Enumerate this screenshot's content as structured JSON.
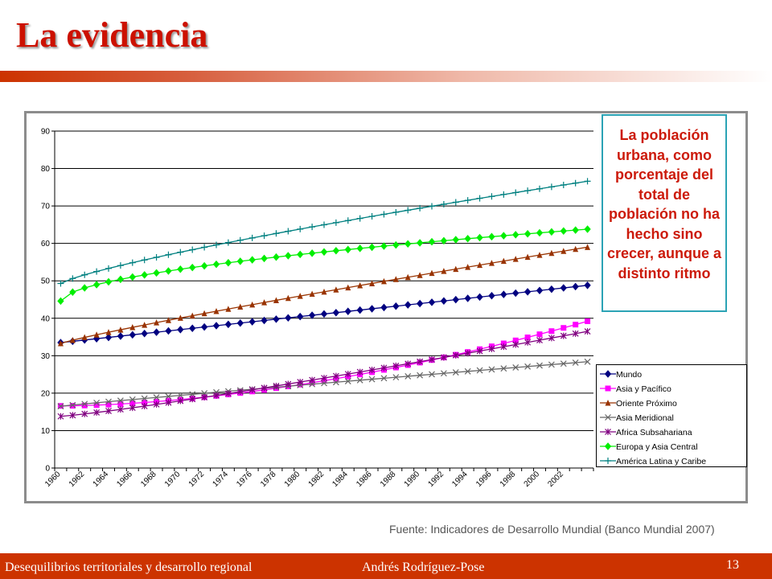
{
  "slide": {
    "title": "La evidencia",
    "callout": "La población urbana, como porcentaje del total de población no ha hecho sino crecer, aunque a distinto ritmo",
    "source": "Fuente:  Indicadores de Desarrollo Mundial (Banco Mundial 2007)",
    "footer_left": "Desequilibrios territoriales y desarrollo regional",
    "footer_mid": "Andrés  Rodríguez-Pose",
    "page_number": "13"
  },
  "chart_data": {
    "type": "line",
    "x_start": 1960,
    "x_end": 2004,
    "x_tick_labels": [
      "1960",
      "1962",
      "1964",
      "1966",
      "1968",
      "1970",
      "1972",
      "1974",
      "1976",
      "1978",
      "1980",
      "1982",
      "1984",
      "1986",
      "1988",
      "1990",
      "1992",
      "1994",
      "1996",
      "1998",
      "2000",
      "2002"
    ],
    "ylim": [
      0,
      90
    ],
    "y_ticks": [
      0,
      10,
      20,
      30,
      40,
      50,
      60,
      70,
      80,
      90
    ],
    "grid": "horizontal",
    "legend_position": "bottom-right",
    "series": [
      {
        "name": "Mundo",
        "color": "#000080",
        "marker": "diamond",
        "start": 33.5,
        "end": 48.8,
        "curve": 1.0
      },
      {
        "name": "Asia y Pacífico",
        "color": "#ff00ff",
        "marker": "square",
        "start": 16.6,
        "end": 39.2,
        "curve": 1.75
      },
      {
        "name": "Oriente Próximo",
        "color": "#993300",
        "marker": "triangle",
        "start": 33.3,
        "end": 59.0,
        "curve": 0.9
      },
      {
        "name": "Asia Meridional",
        "color": "#666666",
        "marker": "x",
        "start": 16.5,
        "end": 28.4,
        "curve": 0.95
      },
      {
        "name": "Africa Subsahariana",
        "color": "#800080",
        "marker": "asterisk",
        "start": 13.8,
        "end": 36.5,
        "curve": 1.15
      },
      {
        "name": "Europa y Asia Central",
        "color": "#00ee00",
        "marker": "diamond",
        "start": 44.6,
        "end": 63.8,
        "curve": 0.55
      },
      {
        "name": "América Latina y Caribe",
        "color": "#008080",
        "marker": "plus",
        "start": 49.3,
        "end": 76.6,
        "curve": 0.8
      }
    ]
  }
}
